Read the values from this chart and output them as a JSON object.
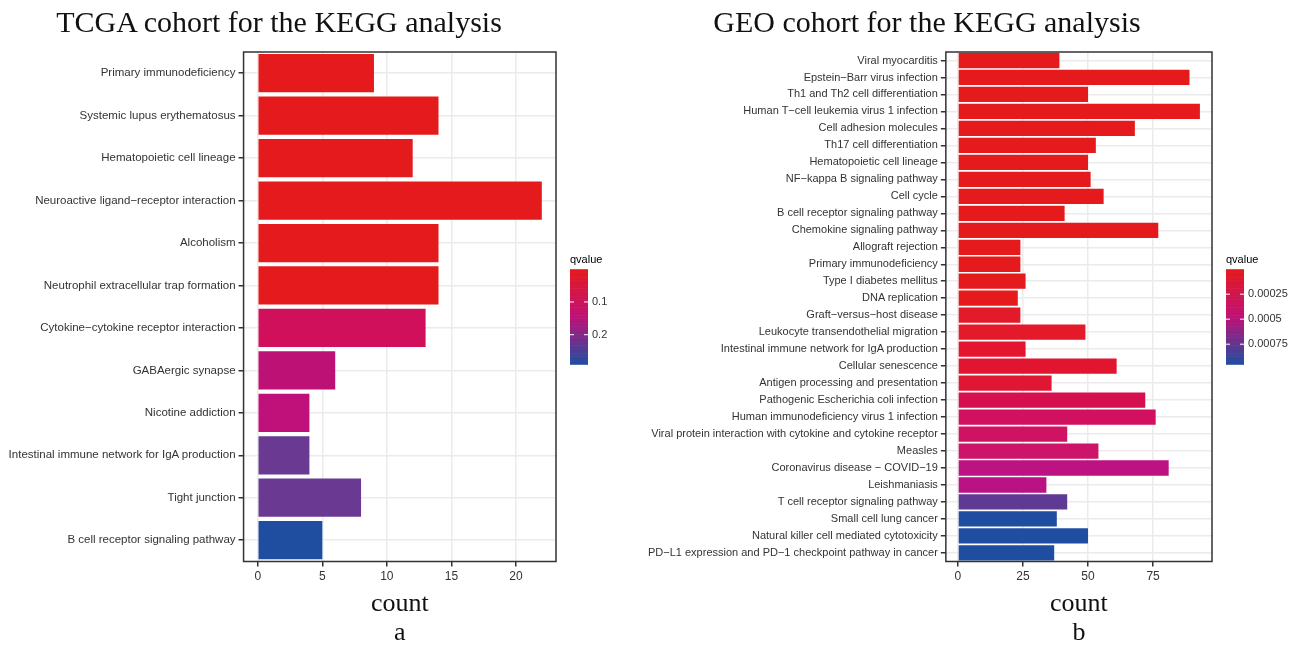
{
  "chart_data": [
    {
      "type": "bar",
      "orientation": "horizontal",
      "title": "TCGA cohort for the KEGG analysis",
      "xlabel": "count",
      "categories": [
        "Primary immunodeficiency",
        "Systemic lupus erythematosus",
        "Hematopoietic cell lineage",
        "Neuroactive ligand−receptor interaction",
        "Alcoholism",
        "Neutrophil extracellular trap formation",
        "Cytokine−cytokine receptor interaction",
        "GABAergic synapse",
        "Nicotine addiction",
        "Intestinal immune network for IgA production",
        "Tight junction",
        "B cell receptor signaling pathway"
      ],
      "values": [
        9,
        14,
        12,
        22,
        14,
        14,
        13,
        6,
        4,
        4,
        8,
        5
      ],
      "colors": [
        "#e41a1c",
        "#e41a1c",
        "#e41a1c",
        "#e41a1c",
        "#e41a1c",
        "#e41a1c",
        "#d0105a",
        "#be1176",
        "#c0117a",
        "#6a3a93",
        "#6a3a93",
        "#1f4ea0"
      ],
      "xlim": [
        -1.1,
        23.1
      ],
      "xticks": [
        0,
        5,
        10,
        15,
        20
      ],
      "grid": true,
      "clabel": "qvalue",
      "clim": [
        0,
        0.29
      ],
      "cticks": [
        0.1,
        0.2
      ],
      "annotations": [
        "a"
      ]
    },
    {
      "type": "bar",
      "orientation": "horizontal",
      "title": "GEO cohort for the KEGG analysis",
      "xlabel": "count",
      "categories": [
        "Viral myocarditis",
        "Epstein−Barr virus infection",
        "Th1 and Th2 cell differentiation",
        "Human T−cell leukemia virus 1 infection",
        "Cell adhesion molecules",
        "Th17 cell differentiation",
        "Hematopoietic cell lineage",
        "NF−kappa B signaling pathway",
        "Cell cycle",
        "B cell receptor signaling pathway",
        "Chemokine signaling pathway",
        "Allograft rejection",
        "Primary immunodeficiency",
        "Type I diabetes mellitus",
        "DNA replication",
        "Graft−versus−host disease",
        "Leukocyte transendothelial migration",
        "Intestinal immune network for IgA production",
        "Cellular senescence",
        "Antigen processing and presentation",
        "Pathogenic Escherichia coli infection",
        "Human immunodeficiency virus 1 infection",
        "Viral protein interaction with cytokine and cytokine receptor",
        "Measles",
        "Coronavirus disease − COVID−19",
        "Leishmaniasis",
        "T cell receptor signaling pathway",
        "Small cell lung cancer",
        "Natural killer cell mediated cytotoxicity",
        "PD−L1 expression and PD−1 checkpoint pathway in cancer"
      ],
      "values": [
        39,
        89,
        50,
        93,
        68,
        53,
        50,
        51,
        56,
        41,
        77,
        24,
        24,
        26,
        23,
        24,
        49,
        26,
        61,
        36,
        72,
        76,
        42,
        54,
        81,
        34,
        42,
        38,
        50,
        37
      ],
      "colors": [
        "#e41a1c",
        "#e41a1c",
        "#e41a1c",
        "#e41a1c",
        "#e41a1c",
        "#e41a1c",
        "#e41a1c",
        "#e41a1c",
        "#e41a1c",
        "#e41a1c",
        "#e41a1c",
        "#e41a1c",
        "#e41a1c",
        "#e41a1c",
        "#e41a1c",
        "#e21a2a",
        "#e4192a",
        "#e4162f",
        "#e21530",
        "#e01733",
        "#d60f4f",
        "#d21060",
        "#d01262",
        "#cc1468",
        "#bc1282",
        "#ba1284",
        "#5e3a94",
        "#1f4ea0",
        "#1f4ea0",
        "#1f4ea0"
      ],
      "xlim": [
        -4.65,
        97.65
      ],
      "xticks": [
        0,
        25,
        50,
        75
      ],
      "grid": true,
      "clabel": "qvalue",
      "clim": [
        0,
        0.00095
      ],
      "cticks": [
        0.00025,
        0.0005,
        0.00075
      ],
      "annotations": [
        "b"
      ]
    }
  ]
}
